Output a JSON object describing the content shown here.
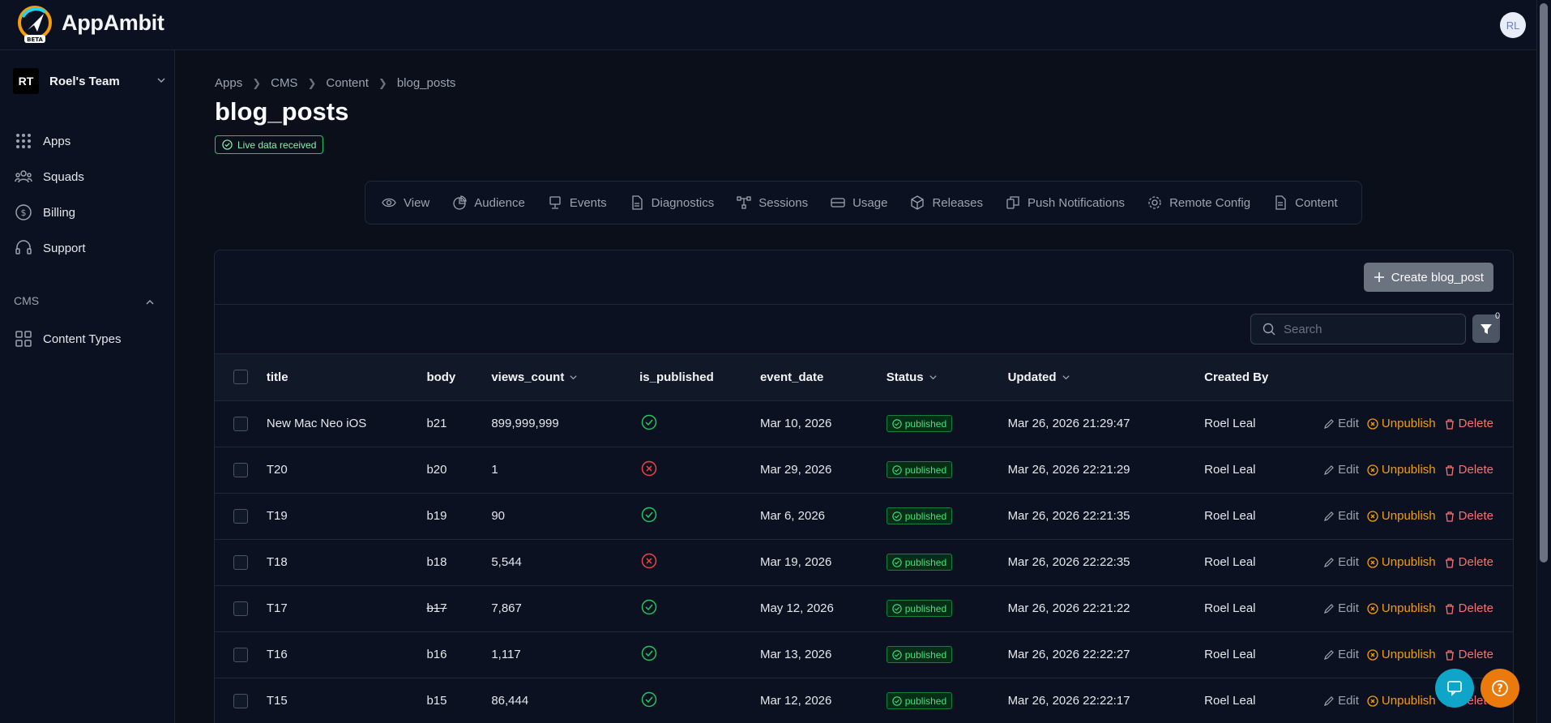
{
  "app": {
    "name": "AppAmbit",
    "beta_label": "BETA",
    "user_initials": "RL"
  },
  "sidebar": {
    "team": {
      "initials": "RT",
      "name": "Roel's Team"
    },
    "items": [
      {
        "label": "Apps",
        "icon": "grid-dots-icon"
      },
      {
        "label": "Squads",
        "icon": "users-icon"
      },
      {
        "label": "Billing",
        "icon": "dollar-circle-icon"
      },
      {
        "label": "Support",
        "icon": "headset-icon"
      }
    ],
    "section": {
      "label": "CMS"
    },
    "cms_items": [
      {
        "label": "Content Types",
        "icon": "layout-grid-icon"
      }
    ]
  },
  "breadcrumb": [
    "Apps",
    "CMS",
    "Content",
    "blog_posts"
  ],
  "page": {
    "title": "blog_posts",
    "live_badge": "Live data received"
  },
  "tabs": [
    {
      "label": "View",
      "icon": "eye-icon"
    },
    {
      "label": "Audience",
      "icon": "chart-pie-icon"
    },
    {
      "label": "Events",
      "icon": "monitor-icon"
    },
    {
      "label": "Diagnostics",
      "icon": "file-icon"
    },
    {
      "label": "Sessions",
      "icon": "network-icon"
    },
    {
      "label": "Usage",
      "icon": "database-icon"
    },
    {
      "label": "Releases",
      "icon": "box-icon"
    },
    {
      "label": "Push Notifications",
      "icon": "bell-icon"
    },
    {
      "label": "Remote Config",
      "icon": "gear-icon"
    },
    {
      "label": "Content",
      "icon": "document-icon"
    }
  ],
  "toolbar": {
    "create_label": "Create blog_post",
    "search_placeholder": "Search",
    "filter_count": "0"
  },
  "table": {
    "columns": {
      "title": "title",
      "body": "body",
      "views_count": "views_count",
      "is_published": "is_published",
      "event_date": "event_date",
      "status": "Status",
      "updated": "Updated",
      "created_by": "Created By"
    },
    "actions": {
      "edit": "Edit",
      "unpublish": "Unpublish",
      "delete": "Delete"
    },
    "rows": [
      {
        "title": "New Mac Neo iOS",
        "body": "b21",
        "views": "899,999,999",
        "published": true,
        "event_date": "Mar 10, 2026",
        "status": "published",
        "updated": "Mar 26, 2026 21:29:47",
        "created_by": "Roel Leal"
      },
      {
        "title": "T20",
        "body": "b20",
        "views": "1",
        "published": false,
        "event_date": "Mar 29, 2026",
        "status": "published",
        "updated": "Mar 26, 2026 22:21:29",
        "created_by": "Roel Leal"
      },
      {
        "title": "T19",
        "body": "b19",
        "views": "90",
        "published": true,
        "event_date": "Mar 6, 2026",
        "status": "published",
        "updated": "Mar 26, 2026 22:21:35",
        "created_by": "Roel Leal"
      },
      {
        "title": "T18",
        "body": "b18",
        "views": "5,544",
        "published": false,
        "event_date": "Mar 19, 2026",
        "status": "published",
        "updated": "Mar 26, 2026 22:22:35",
        "created_by": "Roel Leal"
      },
      {
        "title": "T17",
        "body": "b17",
        "views": "7,867",
        "published": true,
        "event_date": "May 12, 2026",
        "status": "published",
        "updated": "Mar 26, 2026 22:21:22",
        "created_by": "Roel Leal",
        "body_strike": true
      },
      {
        "title": "T16",
        "body": "b16",
        "views": "1,117",
        "published": true,
        "event_date": "Mar 13, 2026",
        "status": "published",
        "updated": "Mar 26, 2026 22:22:27",
        "created_by": "Roel Leal"
      },
      {
        "title": "T15",
        "body": "b15",
        "views": "86,444",
        "published": true,
        "event_date": "Mar 12, 2026",
        "status": "published",
        "updated": "Mar 26, 2026 22:22:17",
        "created_by": "Roel Leal"
      }
    ]
  },
  "colors": {
    "accent_green": "#22c55e",
    "accent_orange": "#f59e0b",
    "danger": "#f87171",
    "chat_fab": "#0ea5c9",
    "help_fab": "#ea7a0c"
  }
}
